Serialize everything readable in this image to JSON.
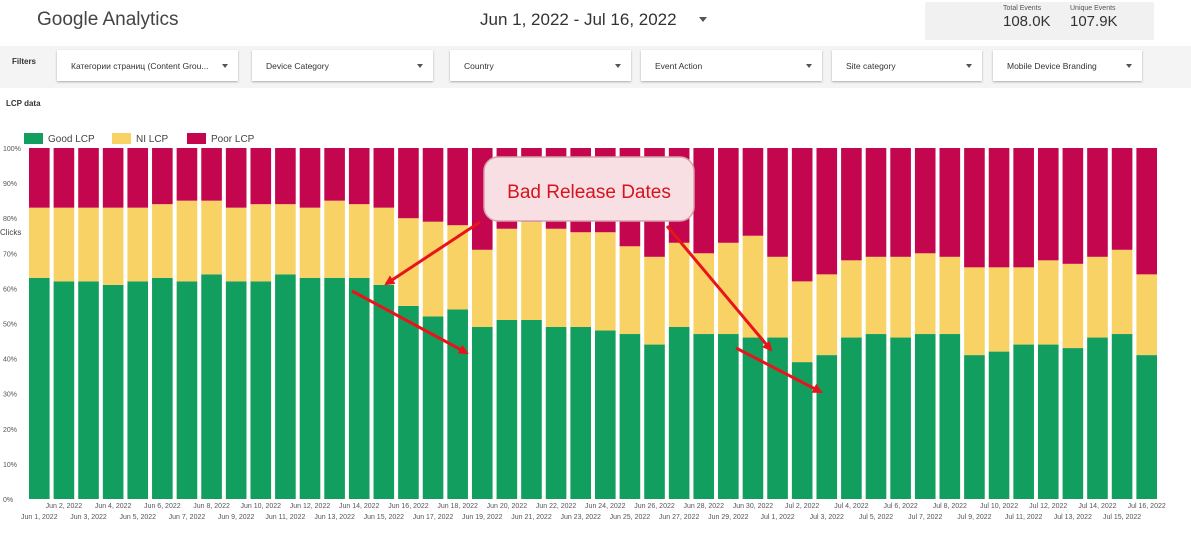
{
  "app": {
    "title": "Google Analytics"
  },
  "date_range": {
    "label": "Jun 1, 2022 - Jul 16, 2022"
  },
  "kpis": [
    {
      "label": "Total Events",
      "value": "108.0K"
    },
    {
      "label": "Unique Events",
      "value": "107.9K"
    }
  ],
  "filters": {
    "label": "Filters",
    "items": [
      "Категории страниц (Content Grou...",
      "Device Category",
      "Country",
      "Event Action",
      "Site category",
      "Mobile Device Branding"
    ]
  },
  "chart_title": "LCP data",
  "annotation": {
    "text": "Bad Release Dates"
  },
  "colors": {
    "good": "#129e5e",
    "ni": "#f8d264",
    "poor": "#c3064e",
    "arrow": "#e8141b"
  },
  "chart_data": {
    "type": "bar",
    "stacked": true,
    "ylabel": "Clicks",
    "ylim": [
      0,
      100
    ],
    "yticks": [
      "0%",
      "10%",
      "20%",
      "30%",
      "40%",
      "50%",
      "60%",
      "70%",
      "80%",
      "90%",
      "100%"
    ],
    "categories": [
      "Jun 1, 2022",
      "Jun 2, 2022",
      "Jun 3, 2022",
      "Jun 4, 2022",
      "Jun 5, 2022",
      "Jun 6, 2022",
      "Jun 7, 2022",
      "Jun 8, 2022",
      "Jun 9, 2022",
      "Jun 10, 2022",
      "Jun 11, 2022",
      "Jun 12, 2022",
      "Jun 13, 2022",
      "Jun 14, 2022",
      "Jun 15, 2022",
      "Jun 16, 2022",
      "Jun 17, 2022",
      "Jun 18, 2022",
      "Jun 19, 2022",
      "Jun 20, 2022",
      "Jun 21, 2022",
      "Jun 22, 2022",
      "Jun 23, 2022",
      "Jun 24, 2022",
      "Jun 25, 2022",
      "Jun 26, 2022",
      "Jun 27, 2022",
      "Jun 28, 2022",
      "Jun 29, 2022",
      "Jun 30, 2022",
      "Jul 1, 2022",
      "Jul 2, 2022",
      "Jul 3, 2022",
      "Jul 4, 2022",
      "Jul 5, 2022",
      "Jul 6, 2022",
      "Jul 7, 2022",
      "Jul 8, 2022",
      "Jul 9, 2022",
      "Jul 10, 2022",
      "Jul 11, 2022",
      "Jul 12, 2022",
      "Jul 13, 2022",
      "Jul 14, 2022",
      "Jul 15, 2022",
      "Jul 16, 2022"
    ],
    "series": [
      {
        "name": "Good LCP",
        "values": [
          63,
          62,
          62,
          61,
          62,
          63,
          62,
          64,
          62,
          62,
          64,
          63,
          63,
          63,
          61,
          55,
          52,
          54,
          49,
          51,
          51,
          49,
          49,
          48,
          47,
          44,
          49,
          47,
          47,
          46,
          46,
          39,
          41,
          46,
          47,
          46,
          47,
          47,
          41,
          42,
          44,
          44,
          43,
          46,
          47,
          41
        ]
      },
      {
        "name": "NI LCP",
        "values": [
          20,
          21,
          21,
          22,
          21,
          21,
          23,
          21,
          21,
          22,
          20,
          20,
          22,
          21,
          22,
          25,
          27,
          24,
          22,
          26,
          28,
          28,
          27,
          28,
          25,
          25,
          24,
          23,
          26,
          29,
          23,
          23,
          23,
          22,
          22,
          23,
          23,
          22,
          25,
          24,
          22,
          24,
          24,
          23,
          24,
          23
        ]
      },
      {
        "name": "Poor LCP",
        "values": [
          17,
          17,
          17,
          17,
          17,
          16,
          15,
          15,
          17,
          16,
          16,
          17,
          15,
          16,
          17,
          20,
          21,
          22,
          29,
          23,
          21,
          23,
          24,
          24,
          28,
          31,
          27,
          30,
          27,
          25,
          31,
          38,
          36,
          32,
          31,
          31,
          30,
          31,
          34,
          34,
          34,
          32,
          33,
          31,
          29,
          36
        ]
      }
    ]
  }
}
